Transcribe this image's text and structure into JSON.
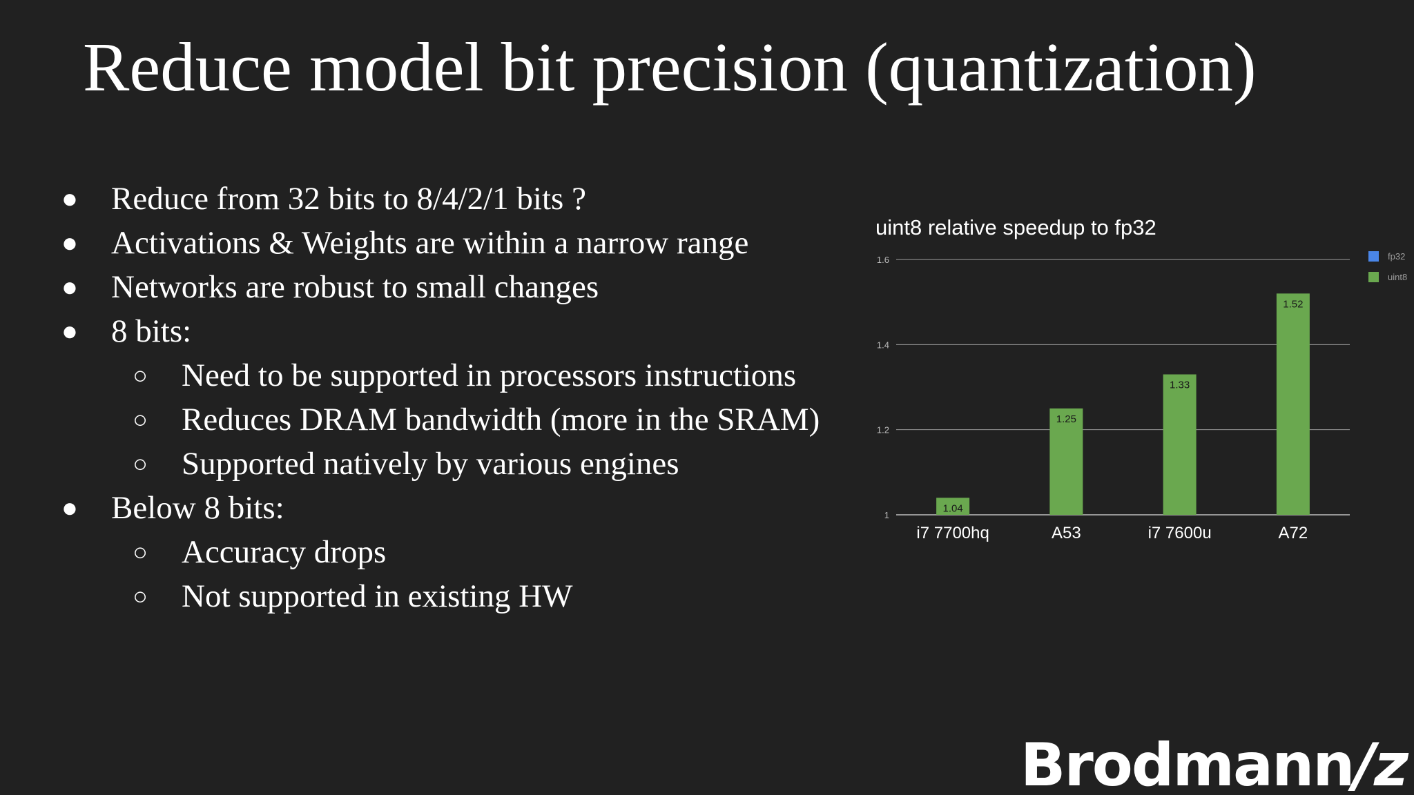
{
  "slide": {
    "title": "Reduce model bit precision (quantization)",
    "bullets": [
      {
        "level": 1,
        "text": "Reduce from 32 bits to 8/4/2/1 bits ?"
      },
      {
        "level": 1,
        "text": "Activations & Weights are within a narrow range"
      },
      {
        "level": 1,
        "text": "Networks are robust to small changes"
      },
      {
        "level": 1,
        "text": "8 bits:"
      },
      {
        "level": 2,
        "text": "Need to be supported in processors instructions"
      },
      {
        "level": 2,
        "text": "Reduces DRAM bandwidth (more in the SRAM)"
      },
      {
        "level": 2,
        "text": "Supported natively by various engines"
      },
      {
        "level": 1,
        "text": "Below 8 bits:"
      },
      {
        "level": 2,
        "text": "Accuracy drops"
      },
      {
        "level": 2,
        "text": "Not supported in existing HW"
      }
    ],
    "markers": {
      "level1": "●",
      "level2": "○"
    },
    "logo_text": "Brodmann17"
  },
  "colors": {
    "background": "#212121",
    "text": "#ffffff",
    "fp32": "#4a86e8",
    "uint8": "#6aa84f",
    "grid": "#9e9e9e"
  },
  "chart_data": {
    "type": "bar",
    "title": "uint8 relative speedup to fp32",
    "categories": [
      "i7 7700hq",
      "A53",
      "i7 7600u",
      "A72"
    ],
    "series": [
      {
        "name": "fp32",
        "values": [
          1,
          1,
          1,
          1
        ]
      },
      {
        "name": "uint8",
        "values": [
          1.04,
          1.25,
          1.33,
          1.52
        ]
      }
    ],
    "data_labels": [
      "1.04",
      "1.25",
      "1.33",
      "1.52"
    ],
    "ylim": [
      1,
      1.6
    ],
    "yticks": [
      1,
      1.2,
      1.4,
      1.6
    ],
    "ytick_labels": [
      "1",
      "1.2",
      "1.4",
      "1.6"
    ],
    "grid": true,
    "legend_position": "right"
  }
}
